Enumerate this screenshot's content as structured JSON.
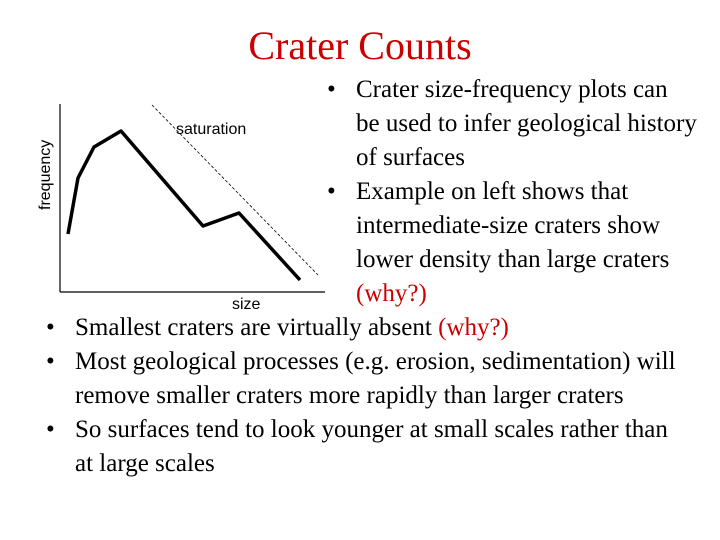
{
  "title": "Crater Counts",
  "sketch": {
    "y_label": "frequency",
    "x_label": "size",
    "annotation": "saturation"
  },
  "bullets_right": [
    {
      "text": "Crater size-frequency plots can be used to infer geological history of surfaces",
      "extra": ""
    },
    {
      "text": "Example on left shows that intermediate-size craters show lower density than large craters ",
      "extra": "(why?)"
    }
  ],
  "bullets_bottom": [
    {
      "text": "Smallest craters are virtually absent ",
      "extra": "(why?)"
    },
    {
      "text": "Most geological processes (e.g. erosion, sedimentation) will remove smaller craters more rapidly than larger craters",
      "extra": ""
    },
    {
      "text": "So surfaces tend to look younger at small scales rather than at large scales",
      "extra": ""
    }
  ],
  "bullet_glyph": "•",
  "colors": {
    "title": "#cc0000",
    "question": "#cc0000"
  }
}
